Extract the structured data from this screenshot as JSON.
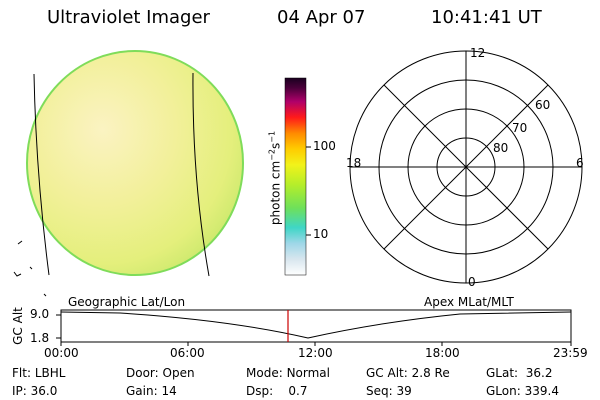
{
  "header": {
    "title": "Ultraviolet Imager",
    "date": "04 Apr 07",
    "time": "10:41:41 UT"
  },
  "colorbar": {
    "unit_prefix": "photon cm",
    "unit_exp1": "−2",
    "unit_mid": "s",
    "unit_exp2": "−1",
    "tick_high": "100",
    "tick_low": "10"
  },
  "polar": {
    "mlt_labels": {
      "top": "12",
      "left": "18",
      "right": "6",
      "bottom": "0"
    },
    "lat_labels": [
      "60",
      "70",
      "80"
    ]
  },
  "orbit": {
    "left_label": "Geographic Lat/Lon",
    "right_label": "Apex MLat/MLT",
    "axis_title": "GC Alt",
    "y_high": "9.0",
    "y_low": "1.8",
    "time_ticks": [
      "00:00",
      "06:00",
      "12:00",
      "18:00",
      "23:59"
    ],
    "marker_color": "#cc0000"
  },
  "info": {
    "flt_label": "Flt:",
    "flt_value": "LBHL",
    "ip_label": "IP:",
    "ip_value": "36.0",
    "door_label": "Door:",
    "door_value": "Open",
    "gain_label": "Gain:",
    "gain_value": "14",
    "mode_label": "Mode:",
    "mode_value": "Normal",
    "dsp_label": "Dsp:",
    "dsp_value": "0.7",
    "gcalt_label": "GC Alt:",
    "gcalt_value": "2.8 Re",
    "seq_label": "Seq:",
    "seq_value": "39",
    "glat_label": "GLat:",
    "glat_value": "36.2",
    "glon_label": "GLon:",
    "glon_value": "339.4"
  }
}
